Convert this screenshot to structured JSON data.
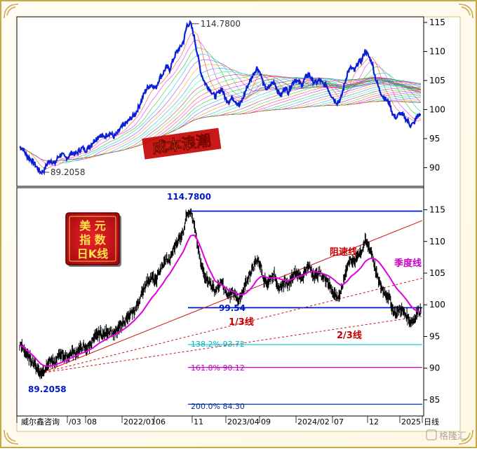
{
  "chart_data": [
    {
      "type": "line",
      "title": "成本浪潮",
      "y_axis_ticks": [
        90,
        95,
        100,
        105,
        110,
        115
      ],
      "ylim": [
        88,
        116
      ],
      "annotations": {
        "high": "114.7800",
        "low": "89.2058"
      },
      "series": [
        {
          "values": [
            93.6,
            93.2,
            92.1,
            91.5,
            90.9,
            90.0,
            89.2,
            89.5,
            90.8,
            91.3,
            90.6,
            91.8,
            92.4,
            91.7,
            91.9,
            92.6,
            92.3,
            92.9,
            93.4,
            93.0,
            93.6,
            94.4,
            95.1,
            95.6,
            95.2,
            95.7,
            96.0,
            95.3,
            95.9,
            96.8,
            97.4,
            97.9,
            98.6,
            99.1,
            100.3,
            101.7,
            103.2,
            104.0,
            104.3,
            103.6,
            105.3,
            106.1,
            107.3,
            106.9,
            108.6,
            109.9,
            110.6,
            111.8,
            114.6,
            114.8,
            112.6,
            109.4,
            106.3,
            104.7,
            103.9,
            103.1,
            102.2,
            102.9,
            103.6,
            101.9,
            101.4,
            102.1,
            101.4,
            100.7,
            101.9,
            103.6,
            104.9,
            106.1,
            107.2,
            106.3,
            104.1,
            103.4,
            104.3,
            104.8,
            103.1,
            102.4,
            103.9,
            103.0,
            104.4,
            105.2,
            104.6,
            104.3,
            105.6,
            106.1,
            104.9,
            104.6,
            105.1,
            104.3,
            104.1,
            102.8,
            101.9,
            101.2,
            101.7,
            104.1,
            106.4,
            107.2,
            106.6,
            108.1,
            108.4,
            110.1,
            109.2,
            108.1,
            105.4,
            103.6,
            102.4,
            101.7,
            101.1,
            99.1,
            98.6,
            99.4,
            98.9,
            98.2,
            97.3,
            97.6,
            98.9,
            99.1
          ]
        }
      ]
    },
    {
      "type": "line",
      "title": "美元指数日K线",
      "y_axis_ticks": [
        85,
        90,
        95,
        100,
        105,
        110,
        115
      ],
      "ylim": [
        83,
        117
      ],
      "x_tick_labels": [
        "威尔鑫咨询",
        "/03",
        "08",
        "2022/01",
        "06",
        "11",
        "2023/04",
        "09",
        "2024/02",
        "07",
        "12",
        "2025",
        "日线"
      ],
      "annotations": {
        "high": "114.7800",
        "low": "89.2058",
        "support_value": "99.54",
        "fib_138": "138.2%  93.72",
        "fib_161": "161.8%  90.12",
        "fib_200": "200.0%  84.30",
        "resistance_line": "阻速线",
        "one_third_line": "1/3线",
        "two_third_line": "2/3线",
        "seasonal_line": "季度线"
      },
      "horizontal_levels": [
        114.78,
        99.54,
        93.72,
        90.12,
        84.3
      ],
      "series": [
        {
          "values": [
            93.6,
            93.2,
            92.1,
            91.5,
            90.9,
            90.0,
            89.2,
            89.5,
            90.8,
            91.3,
            90.6,
            91.8,
            92.4,
            91.7,
            91.9,
            92.6,
            92.3,
            92.9,
            93.4,
            93.0,
            93.6,
            94.4,
            95.1,
            95.6,
            95.2,
            95.7,
            96.0,
            95.3,
            95.9,
            96.8,
            97.4,
            97.9,
            98.6,
            99.1,
            100.3,
            101.7,
            103.2,
            104.0,
            104.3,
            103.6,
            105.3,
            106.1,
            107.3,
            106.9,
            108.6,
            109.9,
            110.6,
            111.8,
            114.6,
            114.8,
            112.6,
            109.4,
            106.3,
            104.7,
            103.9,
            103.1,
            102.2,
            102.9,
            103.6,
            101.9,
            101.4,
            102.1,
            101.4,
            100.7,
            101.9,
            103.6,
            104.9,
            106.1,
            107.2,
            106.3,
            104.1,
            103.4,
            104.3,
            104.8,
            103.1,
            102.4,
            103.9,
            103.0,
            104.4,
            105.2,
            104.6,
            104.3,
            105.6,
            106.1,
            104.9,
            104.6,
            105.1,
            104.3,
            104.1,
            102.8,
            101.9,
            101.2,
            101.7,
            104.1,
            106.4,
            107.2,
            106.6,
            108.1,
            108.4,
            110.1,
            109.2,
            108.1,
            105.4,
            103.6,
            102.4,
            101.7,
            101.1,
            99.1,
            98.6,
            99.4,
            98.9,
            98.2,
            97.3,
            97.6,
            98.9,
            99.1
          ]
        },
        {
          "name": "季度线",
          "values": [
            93.6,
            93.4,
            92.9,
            92.4,
            91.9,
            91.3,
            90.7,
            90.4,
            90.3,
            90.4,
            90.4,
            90.7,
            90.9,
            91.1,
            91.4,
            91.7,
            91.9,
            92.2,
            92.4,
            92.6,
            92.9,
            93.2,
            93.6,
            94.0,
            94.3,
            94.6,
            95.0,
            95.2,
            95.5,
            95.8,
            96.2,
            96.6,
            97.1,
            97.6,
            98.2,
            98.8,
            99.6,
            100.4,
            101.2,
            101.8,
            102.6,
            103.3,
            104.2,
            104.9,
            105.8,
            106.7,
            107.6,
            108.5,
            109.8,
            110.9,
            111.0,
            110.2,
            108.9,
            107.4,
            106.0,
            104.9,
            103.8,
            103.4,
            103.1,
            102.7,
            102.3,
            102.1,
            101.9,
            101.6,
            101.6,
            101.9,
            102.4,
            103.1,
            103.9,
            104.4,
            104.5,
            104.3,
            104.2,
            104.3,
            104.2,
            104.0,
            103.9,
            103.8,
            104.0,
            104.3,
            104.5,
            104.6,
            104.9,
            105.2,
            105.3,
            105.2,
            105.1,
            104.9,
            104.7,
            104.4,
            104.0,
            103.5,
            103.1,
            103.3,
            103.8,
            104.5,
            104.9,
            105.4,
            106.0,
            106.8,
            107.2,
            107.4,
            107.2,
            106.7,
            106.0,
            105.2,
            104.4,
            103.5,
            102.6,
            102.0,
            101.4,
            100.7,
            99.9,
            99.3,
            99.0,
            98.8
          ]
        }
      ]
    }
  ],
  "legend_box": {
    "line1": "美    元",
    "line2": "指    数",
    "line3": "日K线"
  },
  "watermark": "格隆汇"
}
